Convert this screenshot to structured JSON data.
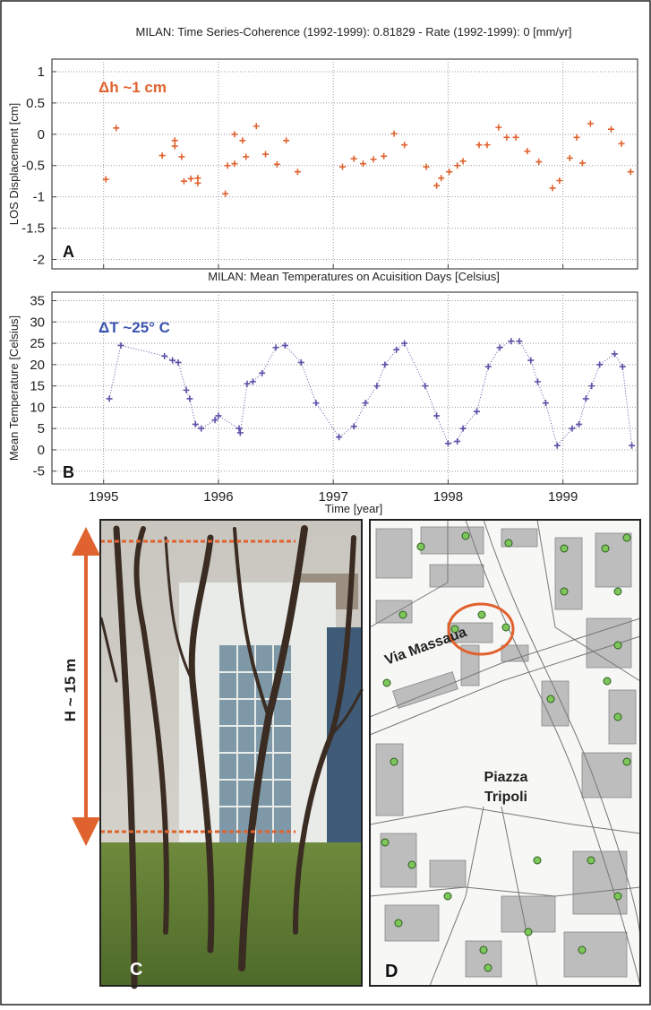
{
  "chart_data": [
    {
      "type": "scatter",
      "title": "MILAN: Time Series-Coherence (1992-1999): 0.81829 - Rate (1992-1999): 0 [mm/yr]",
      "y_label": "LOS Displacement [cm]",
      "annotations": [
        "Δh ~1 cm",
        "A"
      ],
      "color": "#e0622e",
      "line": false,
      "x": [
        1995.02,
        1995.11,
        1995.51,
        1995.62,
        1995.62,
        1995.68,
        1995.7,
        1995.76,
        1995.82,
        1995.82,
        1996.06,
        1996.08,
        1996.14,
        1996.14,
        1996.21,
        1996.24,
        1996.33,
        1996.41,
        1996.51,
        1996.59,
        1996.69,
        1997.08,
        1997.18,
        1997.26,
        1997.35,
        1997.44,
        1997.53,
        1997.62,
        1997.81,
        1997.9,
        1997.94,
        1998.01,
        1998.08,
        1998.13,
        1998.27,
        1998.34,
        1998.44,
        1998.51,
        1998.59,
        1998.69,
        1998.79,
        1998.91,
        1998.97,
        1999.06,
        1999.12,
        1999.17,
        1999.24,
        1999.42,
        1999.51,
        1999.59
      ],
      "values": [
        -0.72,
        0.1,
        -0.34,
        -0.1,
        -0.19,
        -0.36,
        -0.75,
        -0.71,
        -0.78,
        -0.7,
        -0.95,
        -0.5,
        -0.47,
        0,
        -0.1,
        -0.36,
        0.13,
        -0.32,
        -0.48,
        -0.1,
        -0.6,
        -0.52,
        -0.39,
        -0.47,
        -0.4,
        -0.35,
        0.01,
        -0.17,
        -0.52,
        -0.82,
        -0.7,
        -0.6,
        -0.5,
        -0.43,
        -0.17,
        -0.17,
        0.11,
        -0.05,
        -0.05,
        -0.27,
        -0.44,
        -0.86,
        -0.74,
        -0.38,
        -0.05,
        -0.46,
        0.17,
        0.08,
        -0.15,
        -0.6
      ],
      "xlim": [
        1994.55,
        1999.65
      ],
      "xticks": [
        1995,
        1996,
        1997,
        1998,
        1999
      ],
      "ylim": [
        -2.15,
        1.2
      ],
      "yticks": [
        1,
        0.5,
        0,
        -0.5,
        -1,
        -1.5,
        -2
      ],
      "grid": true
    },
    {
      "type": "scatter",
      "title": "MILAN: Mean Temperatures on Acuisition Days [Celsius]",
      "y_label": "Mean Temperature [Celsius]",
      "x_label": "Time [year]",
      "annotations": [
        "ΔT ~25° C",
        "B"
      ],
      "color": "#5a52a8",
      "line": true,
      "x": [
        1995.05,
        1995.15,
        1995.53,
        1995.6,
        1995.65,
        1995.72,
        1995.75,
        1995.8,
        1995.85,
        1995.97,
        1996.0,
        1996.18,
        1996.19,
        1996.25,
        1996.3,
        1996.38,
        1996.5,
        1996.58,
        1996.72,
        1996.85,
        1997.05,
        1997.18,
        1997.28,
        1997.38,
        1997.45,
        1997.55,
        1997.62,
        1997.8,
        1997.9,
        1998.0,
        1998.08,
        1998.13,
        1998.25,
        1998.35,
        1998.45,
        1998.55,
        1998.62,
        1998.72,
        1998.78,
        1998.85,
        1998.95,
        1999.08,
        1999.14,
        1999.2,
        1999.25,
        1999.32,
        1999.45,
        1999.52,
        1999.6
      ],
      "values": [
        12,
        24.5,
        22,
        21,
        20.5,
        14,
        12,
        6,
        5,
        7,
        8,
        5,
        4,
        15.5,
        16,
        18,
        24,
        24.5,
        20.5,
        11,
        3,
        5.5,
        11,
        15,
        20,
        23.5,
        25,
        15,
        8,
        1.5,
        2,
        5,
        9,
        19.5,
        24,
        25.5,
        25.5,
        21,
        16,
        11,
        1,
        5,
        6,
        12,
        15,
        20,
        22.5,
        19.5,
        1
      ],
      "xlim": [
        1994.55,
        1999.65
      ],
      "xticks": [
        1995,
        1996,
        1997,
        1998,
        1999
      ],
      "ylim": [
        -8,
        37
      ],
      "yticks": [
        35,
        30,
        25,
        20,
        15,
        10,
        5,
        0,
        -5
      ],
      "grid": true
    }
  ],
  "panels": {
    "photo": {
      "label": "C",
      "annotation": "H ~ 15 m"
    },
    "map": {
      "label": "D",
      "street": "Via Massaua",
      "square": [
        "Piazza",
        "Tripoli"
      ]
    }
  }
}
